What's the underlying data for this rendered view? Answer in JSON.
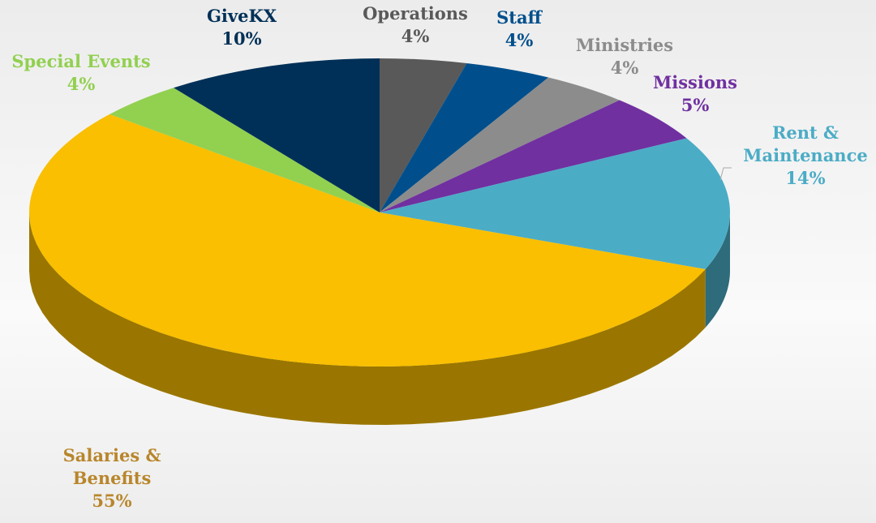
{
  "chart_data": {
    "type": "pie",
    "categories": [
      "Operations",
      "Staff",
      "Ministries",
      "Missions",
      "Rent & Maintenance",
      "Salaries & Benefits",
      "Special Events",
      "GiveKX"
    ],
    "values": [
      4,
      4,
      4,
      5,
      14,
      55,
      4,
      10
    ],
    "value_labels": [
      "4%",
      "4%",
      "4%",
      "5%",
      "14%",
      "55%",
      "4%",
      "10%"
    ],
    "colors": [
      "#595959",
      "#004f8c",
      "#8c8c8c",
      "#7030a0",
      "#4bacc6",
      "#f9bf00",
      "#92d050",
      "#003057"
    ]
  }
}
